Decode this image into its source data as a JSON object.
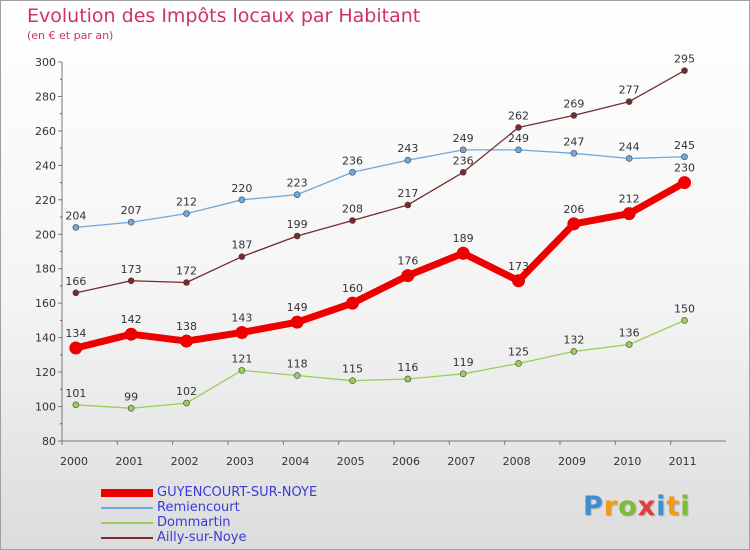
{
  "chart_data": {
    "type": "line",
    "title": "Evolution des Impôts locaux par Habitant",
    "subtitle": "(en € et par an)",
    "xlabel": "",
    "ylabel": "",
    "ylim": [
      80,
      300
    ],
    "yticks": [
      80,
      100,
      120,
      140,
      160,
      180,
      200,
      220,
      240,
      260,
      280,
      300
    ],
    "x": [
      "2000",
      "2001",
      "2002",
      "2003",
      "2004",
      "2005",
      "2006",
      "2007",
      "2008",
      "2009",
      "2010",
      "2011"
    ],
    "grid": false,
    "legend_position": "bottom-left",
    "series": [
      {
        "name": "GUYENCOURT-SUR-NOYE",
        "color": "#ee0000",
        "values": [
          134,
          142,
          138,
          143,
          149,
          160,
          176,
          189,
          173,
          206,
          212,
          230
        ]
      },
      {
        "name": "Remiencourt",
        "color": "#6fa8dc",
        "values": [
          204,
          207,
          212,
          220,
          223,
          236,
          243,
          249,
          249,
          247,
          244,
          245
        ]
      },
      {
        "name": "Dommartin",
        "color": "#9acd5a",
        "values": [
          101,
          99,
          102,
          121,
          118,
          115,
          116,
          119,
          125,
          132,
          136,
          150
        ]
      },
      {
        "name": "Ailly-sur-Noye",
        "color": "#7a2a2a",
        "values": [
          166,
          173,
          172,
          187,
          199,
          208,
          217,
          236,
          262,
          269,
          277,
          295
        ]
      }
    ]
  },
  "brand": {
    "letters": [
      "P",
      "r",
      "o",
      "x",
      "i",
      "t",
      "i"
    ],
    "colors": [
      "#3d8fd1",
      "#f39c12",
      "#7dbb3a",
      "#e53b3b",
      "#3d8fd1",
      "#f39c12",
      "#7dbb3a"
    ]
  }
}
